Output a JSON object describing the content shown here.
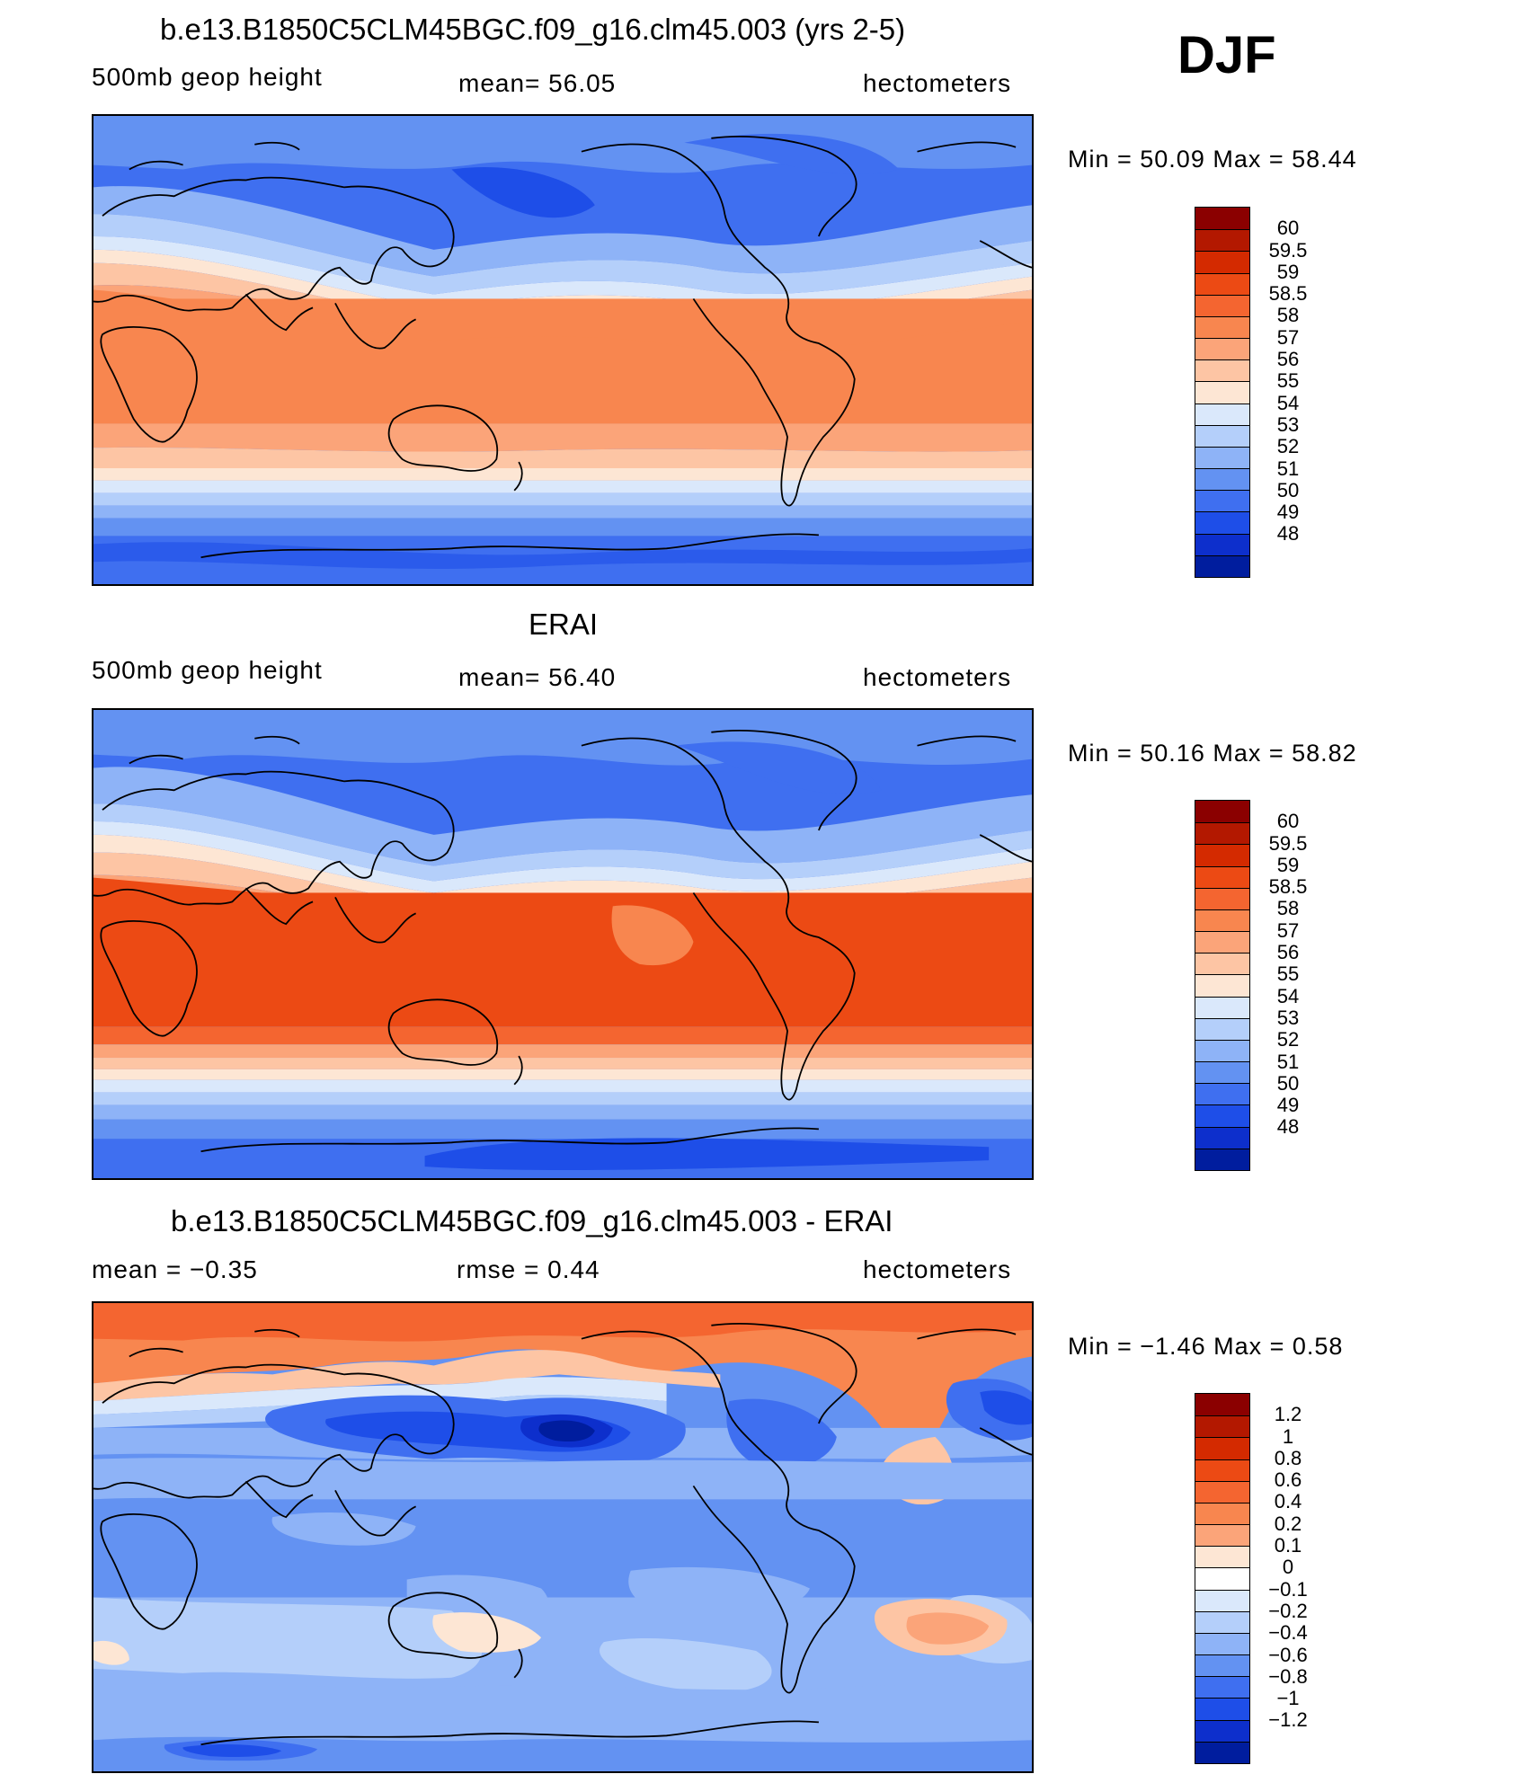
{
  "header": {
    "season": "DJF"
  },
  "panels": [
    {
      "title": "b.e13.B1850C5CLM45BGC.f09_g16.clm45.003 (yrs 2-5)",
      "left": "500mb geop height",
      "center": "mean=  56.05",
      "right": "hectometers",
      "minmax": "Min =   50.09  Max =   58.44",
      "colorbar": {
        "labels": [
          "60",
          "59.5",
          "59",
          "58.5",
          "58",
          "57",
          "56",
          "55",
          "54",
          "53",
          "52",
          "51",
          "50",
          "49",
          "48"
        ],
        "colors": [
          "#8b0000",
          "#b31800",
          "#d42a00",
          "#ec4a14",
          "#f46530",
          "#f8864f",
          "#fba479",
          "#fdc5a4",
          "#fde6d4",
          "#dae8fb",
          "#b4cffa",
          "#8eb3f7",
          "#6392f2",
          "#3f6ff0",
          "#1e4ee8",
          "#0d2fcc",
          "#001d9e"
        ]
      },
      "map_field": "model"
    },
    {
      "title": "ERAI",
      "left": "500mb geop height",
      "center": "mean=  56.40",
      "right": "hectometers",
      "minmax": "Min =   50.16  Max =   58.82",
      "colorbar": {
        "labels": [
          "60",
          "59.5",
          "59",
          "58.5",
          "58",
          "57",
          "56",
          "55",
          "54",
          "53",
          "52",
          "51",
          "50",
          "49",
          "48"
        ],
        "colors": [
          "#8b0000",
          "#b31800",
          "#d42a00",
          "#ec4a14",
          "#f46530",
          "#f8864f",
          "#fba479",
          "#fdc5a4",
          "#fde6d4",
          "#dae8fb",
          "#b4cffa",
          "#8eb3f7",
          "#6392f2",
          "#3f6ff0",
          "#1e4ee8",
          "#0d2fcc",
          "#001d9e"
        ]
      },
      "map_field": "obs"
    },
    {
      "title": "b.e13.B1850C5CLM45BGC.f09_g16.clm45.003 - ERAI",
      "left": "mean =   −0.35",
      "center": "rmse =    0.44",
      "right": "hectometers",
      "minmax": "Min =   −1.46  Max =     0.58",
      "colorbar": {
        "labels": [
          "1.2",
          "1",
          "0.8",
          "0.6",
          "0.4",
          "0.2",
          "0.1",
          "0",
          "−0.1",
          "−0.2",
          "−0.4",
          "−0.6",
          "−0.8",
          "−1",
          "−1.2"
        ],
        "colors": [
          "#8b0000",
          "#b31800",
          "#d42a00",
          "#ec4a14",
          "#f46530",
          "#f8864f",
          "#fba479",
          "#fde6d4",
          "#ffffff",
          "#dae8fb",
          "#b4cffa",
          "#8eb3f7",
          "#6392f2",
          "#3f6ff0",
          "#1e4ee8",
          "#0d2fcc",
          "#001d9e"
        ]
      },
      "map_field": "diff"
    }
  ]
}
